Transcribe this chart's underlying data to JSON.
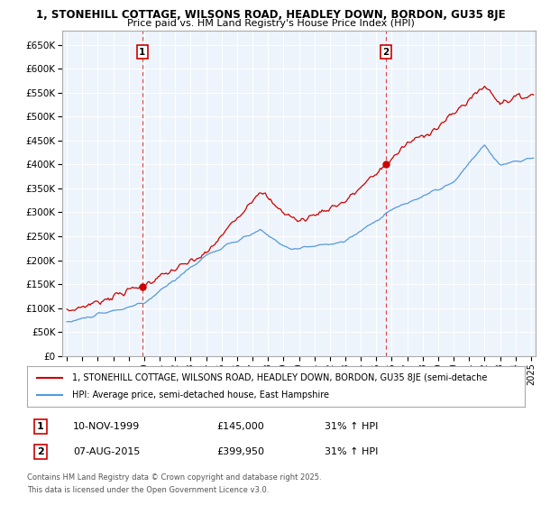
{
  "title1": "1, STONEHILL COTTAGE, WILSONS ROAD, HEADLEY DOWN, BORDON, GU35 8JE",
  "title2": "Price paid vs. HM Land Registry's House Price Index (HPI)",
  "yticks": [
    0,
    50000,
    100000,
    150000,
    200000,
    250000,
    300000,
    350000,
    400000,
    450000,
    500000,
    550000,
    600000,
    650000
  ],
  "ytick_labels": [
    "£0",
    "£50K",
    "£100K",
    "£150K",
    "£200K",
    "£250K",
    "£300K",
    "£350K",
    "£400K",
    "£450K",
    "£500K",
    "£550K",
    "£600K",
    "£650K"
  ],
  "ylim": [
    0,
    680000
  ],
  "sale1_date": "10-NOV-1999",
  "sale1_price": 145000,
  "sale1_label": "1",
  "sale1_hpi": "31% ↑ HPI",
  "sale2_date": "07-AUG-2015",
  "sale2_price": 399950,
  "sale2_label": "2",
  "sale2_hpi": "31% ↑ HPI",
  "property_color": "#cc0000",
  "hpi_color": "#5599dd",
  "legend_property": "1, STONEHILL COTTAGE, WILSONS ROAD, HEADLEY DOWN, BORDON, GU35 8JE (semi-detache",
  "legend_hpi": "HPI: Average price, semi-detached house, East Hampshire",
  "footer1": "Contains HM Land Registry data © Crown copyright and database right 2025.",
  "footer2": "This data is licensed under the Open Government Licence v3.0.",
  "background_color": "#ffffff",
  "grid_color": "#ccddee",
  "vline_color": "#dd4444"
}
